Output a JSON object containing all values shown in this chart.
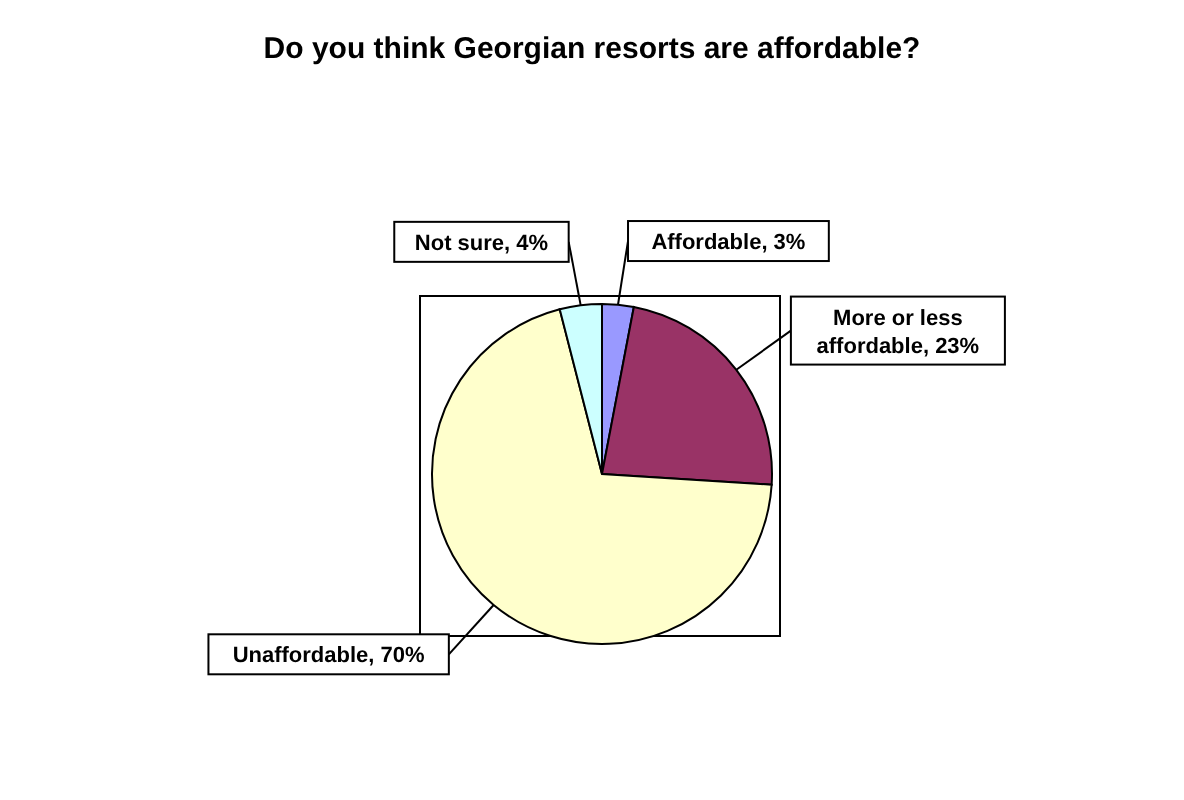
{
  "chart_data": {
    "type": "pie",
    "title": "Do you think Georgian resorts are affordable?",
    "categories": [
      "Affordable",
      "More or less affordable",
      "Unaffordable",
      "Not sure"
    ],
    "values": [
      3,
      23,
      70,
      4
    ],
    "value_labels": [
      "3%",
      "23%",
      "70%",
      "4%"
    ],
    "colors": [
      "#9999ff",
      "#993366",
      "#ffffcc",
      "#ccffff"
    ],
    "legend": false
  }
}
